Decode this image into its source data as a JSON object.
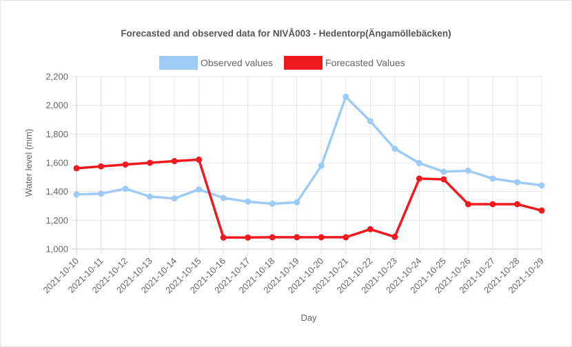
{
  "chart_data": {
    "type": "line",
    "title": "Forecasted and observed data for NIVÅ003 - Hedentorp(Ängamöllebäcken)",
    "xlabel": "Day",
    "ylabel": "Water level (mm)",
    "ylim": [
      1000,
      2200
    ],
    "yticks": [
      "1,000",
      "1,200",
      "1,400",
      "1,600",
      "1,800",
      "2,000",
      "2,200"
    ],
    "grid": true,
    "legend_position": "top",
    "categories": [
      "2021-10-10",
      "2021-10-11",
      "2021-10-12",
      "2021-10-13",
      "2021-10-14",
      "2021-10-15",
      "2021-10-16",
      "2021-10-17",
      "2021-10-18",
      "2021-10-19",
      "2021-10-20",
      "2021-10-21",
      "2021-10-22",
      "2021-10-23",
      "2021-10-24",
      "2021-10-25",
      "2021-10-26",
      "2021-10-27",
      "2021-10-28",
      "2021-10-29"
    ],
    "series": [
      {
        "name": "Observed values",
        "color": "#9ccbf5",
        "values": [
          1380,
          1385,
          1420,
          1365,
          1352,
          1415,
          1355,
          1330,
          1315,
          1325,
          1580,
          2060,
          1890,
          1698,
          1598,
          1538,
          1545,
          1490,
          1465,
          1443
        ]
      },
      {
        "name": "Forecasted Values",
        "color": "#f0191e",
        "values": [
          1562,
          1575,
          1588,
          1600,
          1612,
          1622,
          1080,
          1080,
          1082,
          1082,
          1082,
          1082,
          1138,
          1085,
          1490,
          1485,
          1312,
          1312,
          1312,
          1268
        ]
      }
    ]
  }
}
